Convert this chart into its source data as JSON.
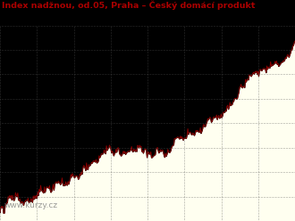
{
  "title": "Index nadžnou, od.05, Praha – Český domácí produkt",
  "title_color": "#AA0000",
  "title_fontsize": 6.8,
  "line_color": "#8B0000",
  "fill_color": "#FFFFF0",
  "plot_bg_color": "#000000",
  "outer_bg_color": "#000000",
  "grid_color": "#555555",
  "watermark": "www.kurzy.cz",
  "watermark_color": "#888888",
  "n_points": 400,
  "n_vgrid": 8,
  "n_hgrid": 8,
  "seed": 12
}
